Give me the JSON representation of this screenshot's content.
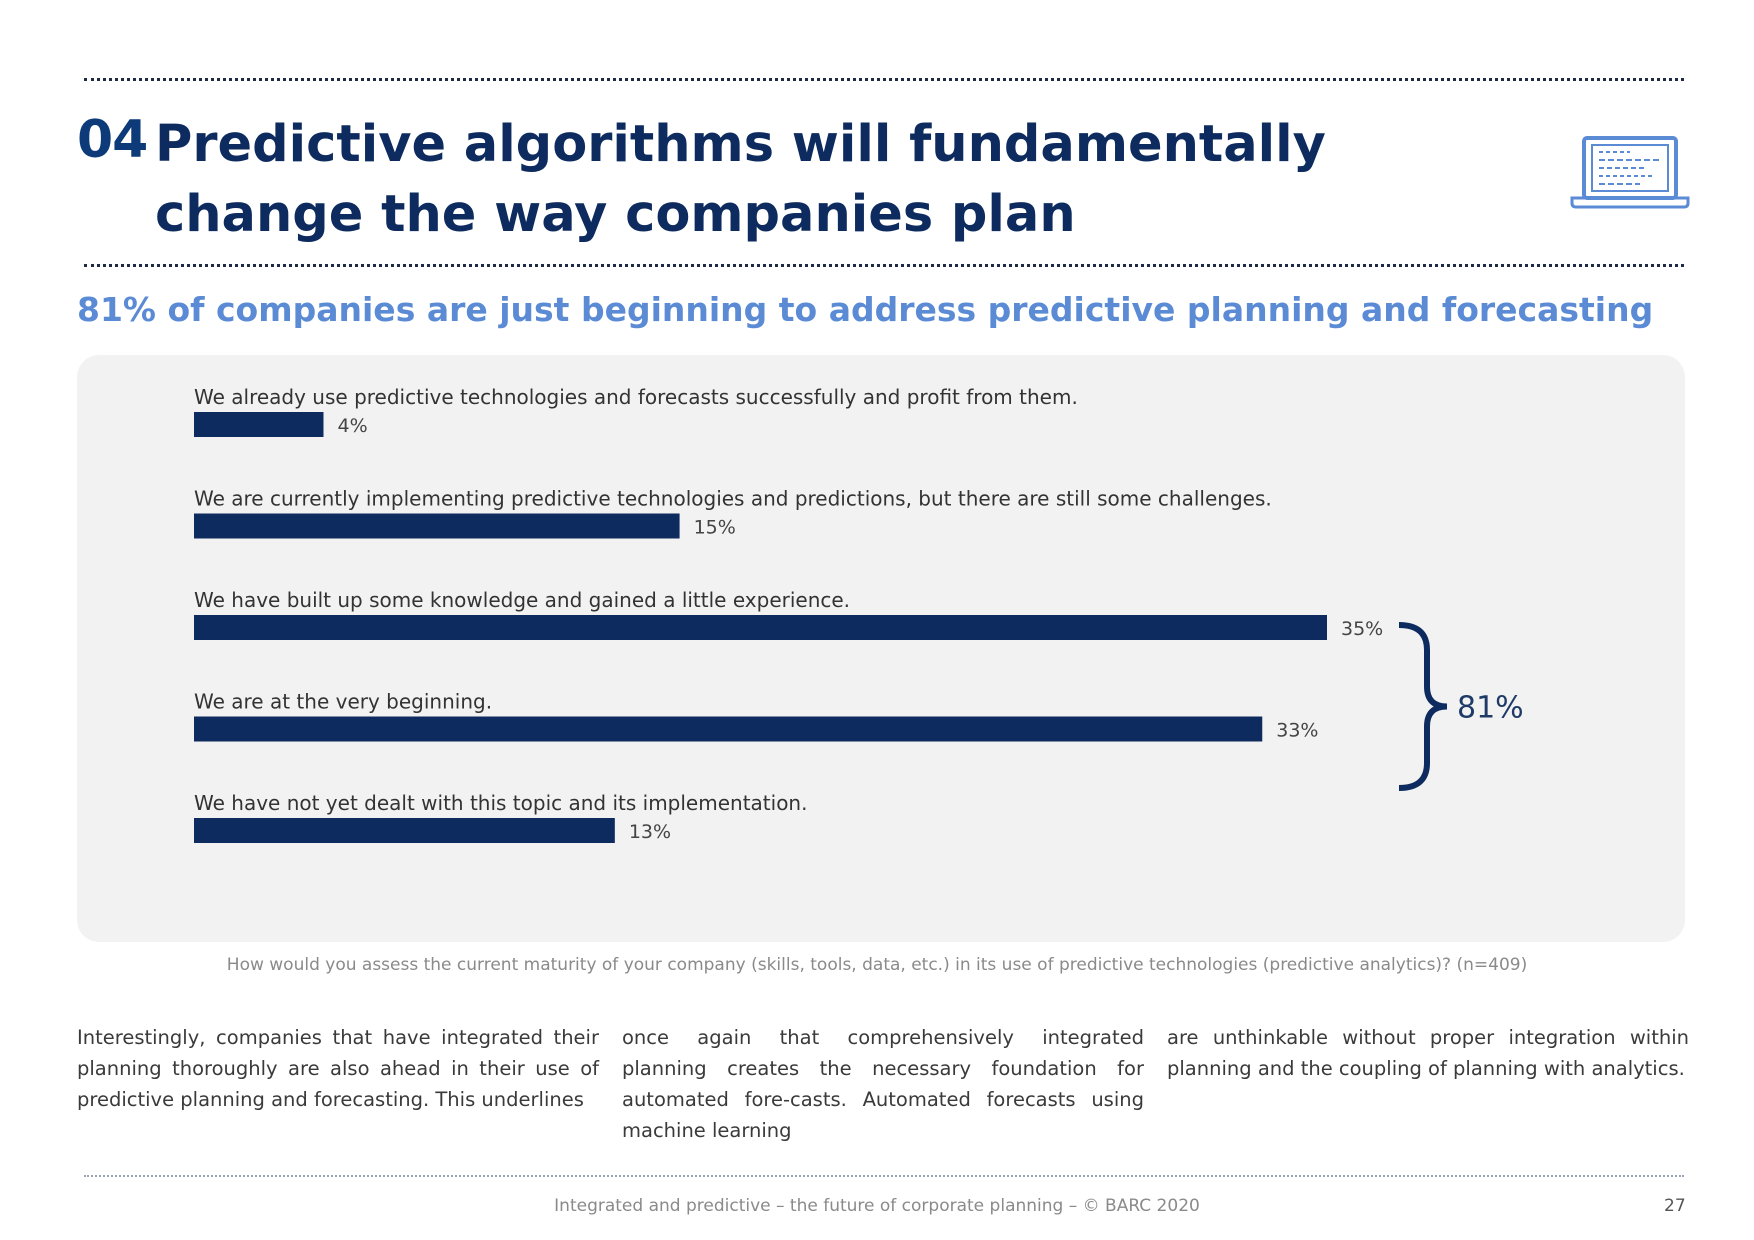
{
  "header": {
    "number": "04",
    "title_line1": "Predictive algorithms will fundamentally",
    "title_line2": "change the way companies plan",
    "icon": "laptop-code-icon"
  },
  "subtitle": "81% of companies are just beginning to address predictive planning and forecasting",
  "chart_data": {
    "type": "bar",
    "orientation": "horizontal",
    "categories": [
      "We already use predictive technologies and forecasts successfully and profit from them.",
      "We are currently implementing predictive technologies and predictions, but there are still some challenges.",
      "We have built up some knowledge and gained a little experience.",
      "We are at the very beginning.",
      "We have not yet dealt with this topic and its implementation."
    ],
    "values": [
      4,
      15,
      35,
      33,
      13
    ],
    "value_labels": [
      "4%",
      "15%",
      "35%",
      "33%",
      "13%"
    ],
    "unit": "%",
    "xlim": [
      0,
      35
    ],
    "bar_color": "#0d2b5e",
    "bracket": {
      "label": "81%",
      "spans": [
        2,
        4
      ]
    },
    "title": "",
    "xlabel": "",
    "ylabel": ""
  },
  "caption": "How would you assess the current maturity of your company (skills, tools, data, etc.) in its use of predictive technologies (predictive analytics)? (n=409)",
  "body": {
    "col1": "Interestingly, companies that have integrated their planning thoroughly are also ahead in their use of predictive planning and forecasting. This underlines",
    "col2": "once again that comprehensively integrated planning creates the necessary foundation for automated fore-casts. Automated forecasts using machine learning",
    "col3": "are unthinkable without proper integration within planning and the coupling of planning with analytics."
  },
  "footer": {
    "text": "Integrated and predictive – the future of corporate planning  – © BARC 2020",
    "page_number": "27"
  }
}
